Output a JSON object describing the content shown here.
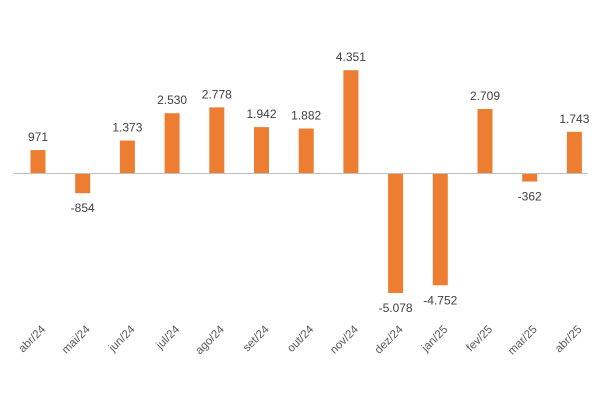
{
  "chart_data": {
    "type": "bar",
    "title": "",
    "xlabel": "",
    "ylabel": "",
    "categories": [
      "abr/24",
      "mai/24",
      "jun/24",
      "jul/24",
      "ago/24",
      "set/24",
      "out/24",
      "nov/24",
      "dez/24",
      "jan/25",
      "fev/25",
      "mar/25",
      "abr/25"
    ],
    "values": [
      971,
      -854,
      1373,
      2530,
      2778,
      1942,
      1882,
      4351,
      -5078,
      -4752,
      2709,
      -362,
      1743
    ],
    "value_labels": [
      "971",
      "-854",
      "1.373",
      "2.530",
      "2.778",
      "1.942",
      "1.882",
      "4.351",
      "-5.078",
      "-4.752",
      "2.709",
      "-362",
      "1.743"
    ],
    "ylim": [
      -5500,
      4800
    ],
    "grid": false,
    "legend": "none",
    "colors": {
      "bar": "#ED7D31",
      "axis": "#BFBFBF",
      "label": "#404040"
    }
  }
}
